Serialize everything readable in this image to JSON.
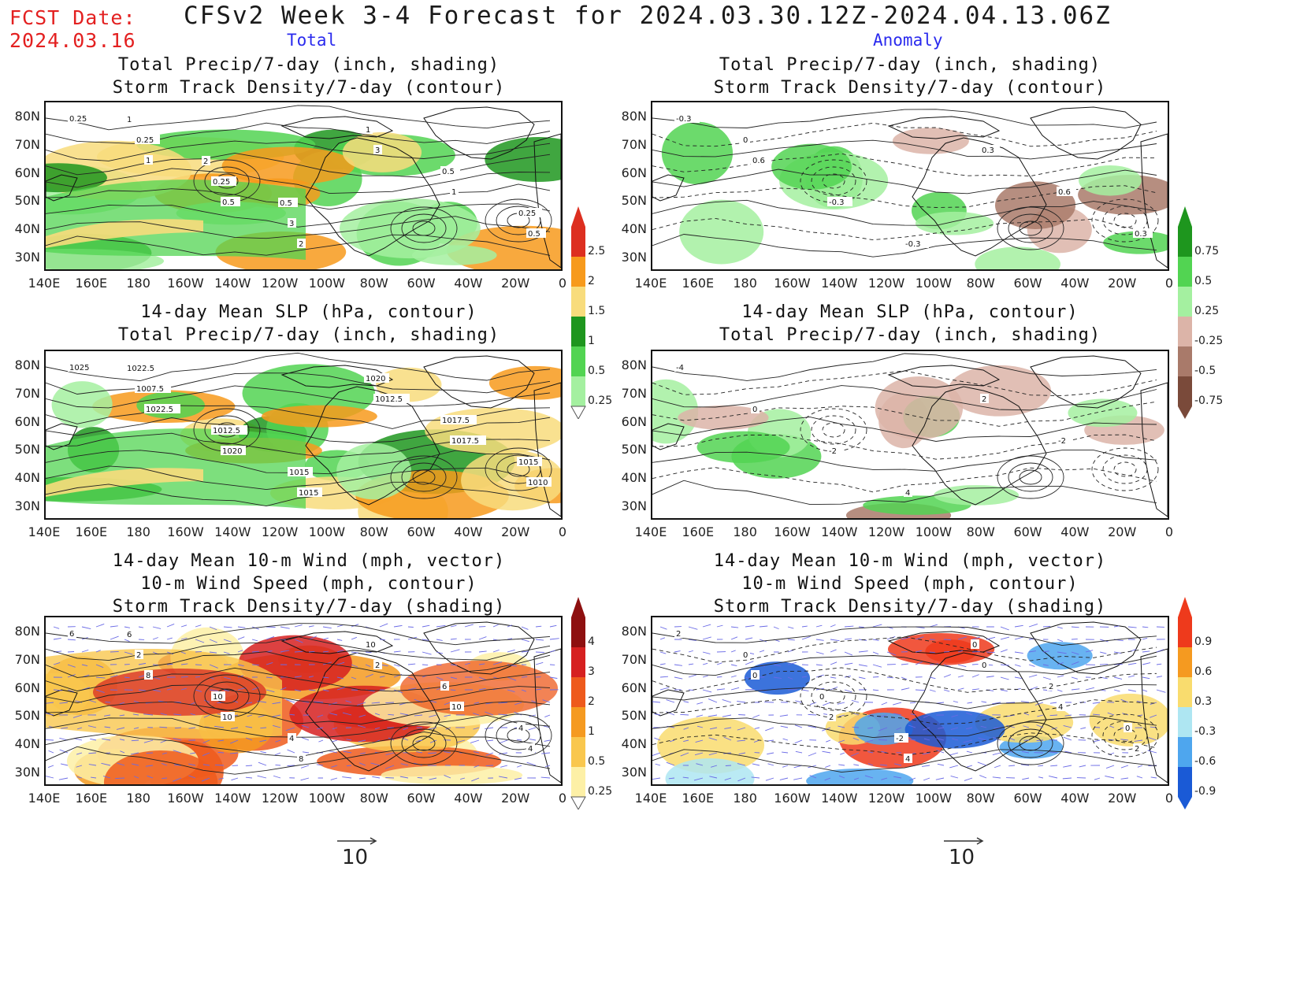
{
  "header": {
    "fcst_label": "FCST Date:",
    "fcst_date": "2024.03.16",
    "title": "CFSv2 Week 3-4 Forecast for 2024.03.30.12Z-2024.04.13.06Z",
    "col_total": "Total",
    "col_anomaly": "Anomaly"
  },
  "axes": {
    "lat_labels": [
      "80N",
      "70N",
      "60N",
      "50N",
      "40N",
      "30N"
    ],
    "lon_labels": [
      "140E",
      "160E",
      "180",
      "160W",
      "140W",
      "120W",
      "100W",
      "80W",
      "60W",
      "40W",
      "20W",
      "0"
    ]
  },
  "panels": {
    "total_precip": {
      "title1": "Total Precip/7-day (inch, shading)",
      "title2": "Storm Track Density/7-day (contour)",
      "contour_labels": [
        "0.25",
        "1",
        "0.5",
        "2",
        "3",
        "1",
        "0.5",
        "0.25",
        "0.25",
        "3",
        "1",
        "0.5",
        "0.25",
        "1",
        "2",
        "0.5"
      ]
    },
    "total_slp": {
      "title1": "14-day Mean SLP (hPa, contour)",
      "title2": "Total Precip/7-day (inch, shading)",
      "contour_labels": [
        "1025",
        "1022.5",
        "1020",
        "1015",
        "1012.5",
        "1017.5",
        "1010",
        "1007.5",
        "1012.5",
        "1015",
        "1020",
        "1017.5",
        "1015",
        "1022.5"
      ]
    },
    "total_wind": {
      "title1": "14-day Mean 10-m Wind (mph, vector)",
      "title2": "10-m Wind Speed (mph, contour)",
      "title3": "Storm Track Density/7-day (shading)",
      "contour_labels": [
        "6",
        "8",
        "10",
        "8",
        "2",
        "10",
        "4",
        "2",
        "10",
        "4",
        "10",
        "6",
        "4",
        "6"
      ]
    },
    "anom_precip": {
      "title1": "Total Precip/7-day (inch, shading)",
      "title2": "Storm Track Density/7-day (contour)",
      "contour_labels": [
        "-0.3",
        "0.6",
        "-0.3",
        "-0.3",
        "0.3",
        "0.6",
        "0.3",
        "0"
      ]
    },
    "anom_slp": {
      "title1": "14-day Mean SLP (hPa, contour)",
      "title2": "Total Precip/7-day (inch, shading)",
      "contour_labels": [
        "-4",
        "0",
        "-2",
        "4",
        "2",
        "-2"
      ]
    },
    "anom_wind": {
      "title1": "14-day Mean 10-m Wind (mph, vector)",
      "title2": "10-m Wind Speed (mph, contour)",
      "title3": "Storm Track Density/7-day (shading)",
      "contour_labels": [
        "2",
        "0",
        "2",
        "4",
        "0",
        "4",
        "2",
        "0",
        "0",
        "-2",
        "0",
        "2",
        "0"
      ]
    }
  },
  "colorbars": {
    "total_precip": {
      "labels": [
        "2.5",
        "2",
        "1.5",
        "1",
        "0.5",
        "0.25"
      ],
      "colors": [
        "#dd2f20",
        "#f79a1c",
        "#f8dc7c",
        "#1e961e",
        "#52d452",
        "#a4f0a0"
      ]
    },
    "storm_track": {
      "labels": [
        "4",
        "3",
        "2",
        "1",
        "0.5",
        "0.25"
      ],
      "colors": [
        "#8e1010",
        "#d62020",
        "#ee5a1c",
        "#f59a20",
        "#f9c74e",
        "#fdf0a6"
      ]
    },
    "anom_precip": {
      "labels": [
        "0.75",
        "0.5",
        "0.25",
        "-0.25",
        "-0.5",
        "-0.75"
      ],
      "colors": [
        "#1e961e",
        "#52d452",
        "#a4f0a0",
        "#dcb4a8",
        "#a97a6a",
        "#7a4a3a"
      ]
    },
    "anom_storm": {
      "labels": [
        "0.9",
        "0.6",
        "0.3",
        "-0.3",
        "-0.6",
        "-0.9"
      ],
      "colors": [
        "#ee3a1c",
        "#f59a20",
        "#f9dc6e",
        "#aee6f2",
        "#4ea6ee",
        "#1a5ad6"
      ]
    }
  },
  "reference_vector": {
    "left": "10",
    "right": "10"
  }
}
